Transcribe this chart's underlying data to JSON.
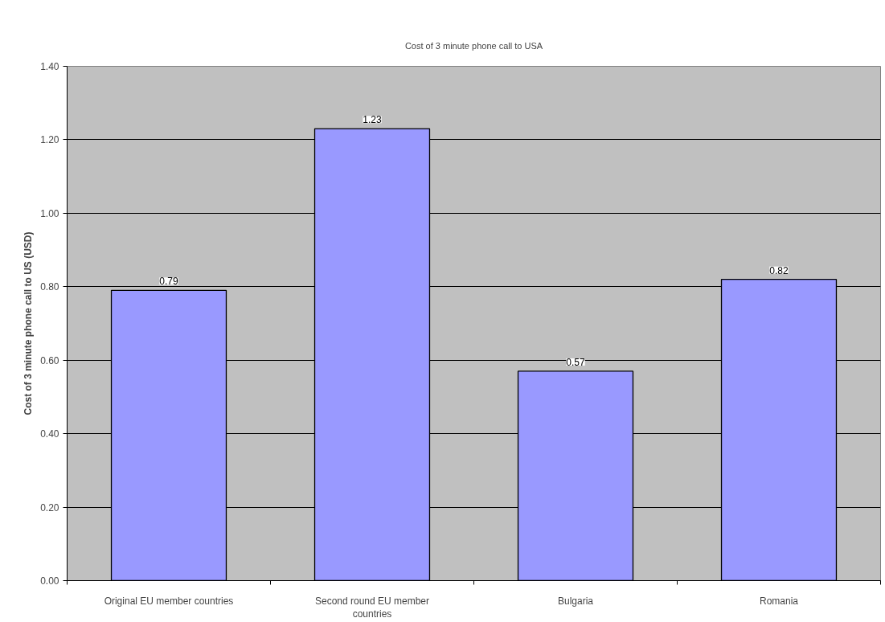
{
  "chart_data": {
    "type": "bar",
    "title": "Cost of 3 minute phone call to USA",
    "ylabel": "Cost of 3 minute phone call to US (USD)",
    "categories": [
      "Original EU member countries",
      "Second round EU member countries",
      "Bulgaria",
      "Romania"
    ],
    "values": [
      0.79,
      1.23,
      0.57,
      0.82
    ],
    "color": "#9999ff",
    "ylim": [
      0,
      1.4
    ],
    "yticks": [
      {
        "value": 0,
        "label": "0.00"
      },
      {
        "value": 0.2,
        "label": "0.20"
      },
      {
        "value": 0.4,
        "label": "0.40"
      },
      {
        "value": 0.6,
        "label": "0.60"
      },
      {
        "value": 0.8,
        "label": "0.80"
      },
      {
        "value": 1.0,
        "label": "1.00"
      },
      {
        "value": 1.2,
        "label": "1.20"
      },
      {
        "value": 1.4,
        "label": "1.40"
      }
    ],
    "grid": "y",
    "data_labels": true
  }
}
